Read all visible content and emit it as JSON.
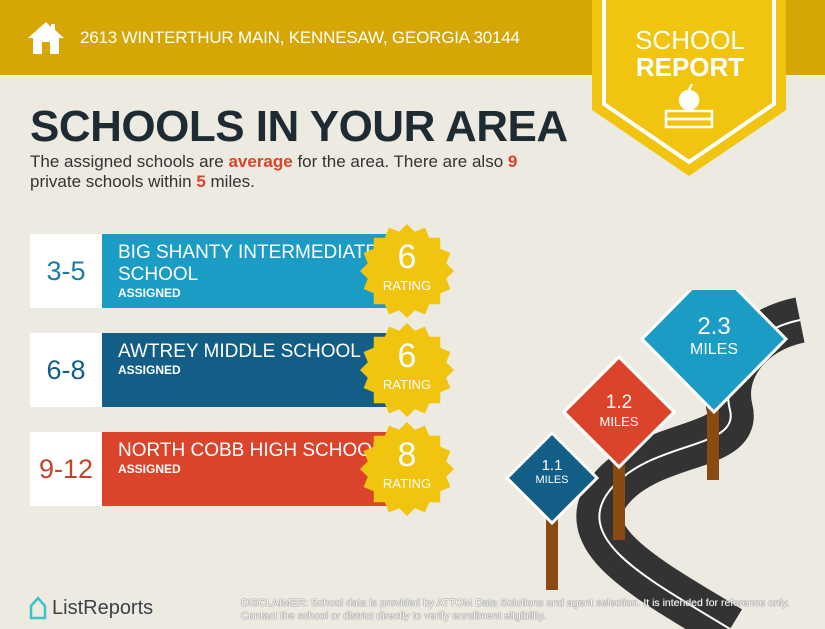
{
  "header": {
    "address": "2613 WINTERTHUR MAIN, KENNESAW, GEORGIA 30144",
    "badge_line1": "SCHOOL",
    "badge_line2": "REPORT"
  },
  "title": "SCHOOLS IN YOUR AREA",
  "summary": {
    "p1": "The assigned schools are ",
    "quality": "average",
    "p2": " for the area. There are also ",
    "private_count": "9",
    "p3": " private schools within ",
    "miles": "5",
    "p4": " miles."
  },
  "schools": [
    {
      "grades": "3-5",
      "name": "BIG SHANTY INTERMEDIATE SCHOOL",
      "status": "ASSIGNED",
      "rating": "6",
      "rating_label": "RATING",
      "color": "#1A9CC4",
      "grade_color": "#1A7FA3"
    },
    {
      "grades": "6-8",
      "name": "AWTREY MIDDLE SCHOOL",
      "status": "ASSIGNED",
      "rating": "6",
      "rating_label": "RATING",
      "color": "#125E86",
      "grade_color": "#125E86"
    },
    {
      "grades": "9-12",
      "name": "NORTH COBB HIGH SCHOOL",
      "status": "ASSIGNED",
      "rating": "8",
      "rating_label": "RATING",
      "color": "#D9442A",
      "grade_color": "#C2432A"
    }
  ],
  "signs": [
    {
      "value": "2.3",
      "unit": "MILES"
    },
    {
      "value": "1.2",
      "unit": "MILES"
    },
    {
      "value": "1.1",
      "unit": "MILES"
    }
  ],
  "footer": {
    "brand": "ListReports",
    "disclaimer": "DISCLAIMER: School data is provided by ATTOM Data Solutions and agent selection. It is intended for reference only. Contact the school or district directly to verify enrollment eligibility."
  }
}
